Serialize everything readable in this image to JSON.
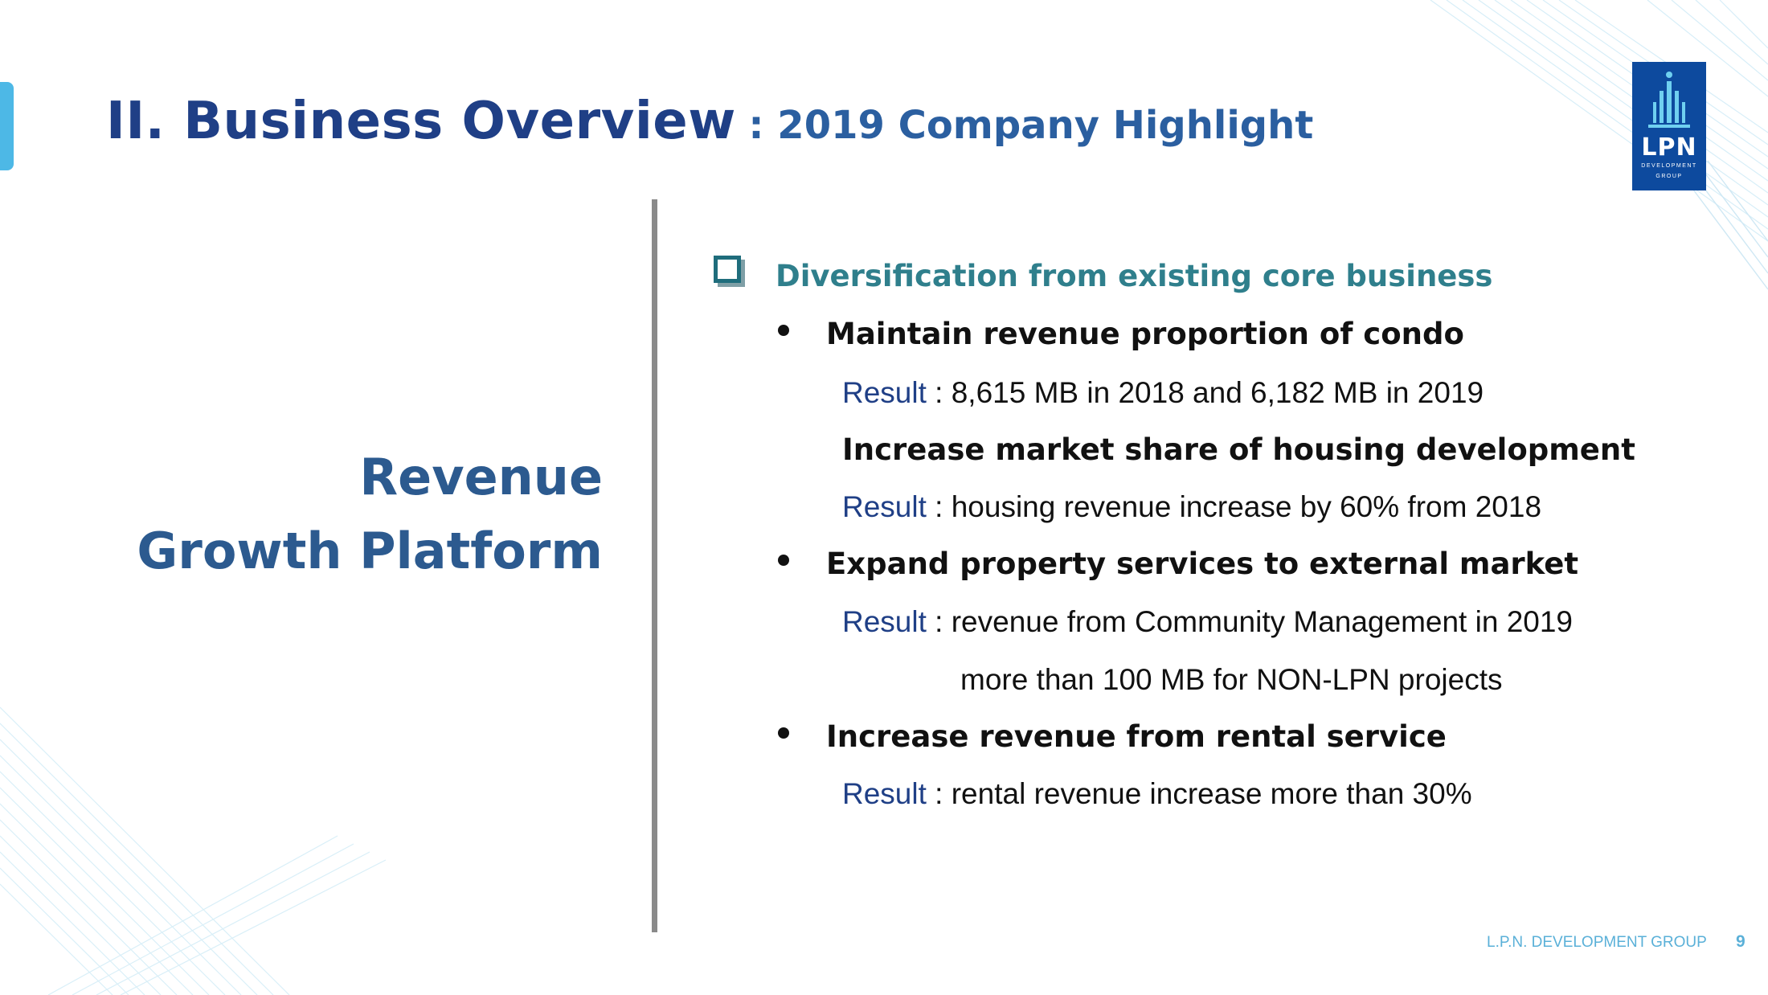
{
  "header": {
    "title_main": "II. Business Overview",
    "title_sub": ": 2019 Company Highlight"
  },
  "logo": {
    "wordmark": "LPN",
    "tagline_1": "DEVELOPMENT",
    "tagline_2": "GROUP"
  },
  "left_panel": {
    "line_1": "Revenue",
    "line_2": "Growth Platform"
  },
  "content": {
    "section_heading": "Diversification from existing core business",
    "items": [
      {
        "heading": "Maintain revenue proportion of condo",
        "result_label": "Result",
        "result_text": " : 8,615 MB in 2018 and 6,182 MB in 2019",
        "sub_heading": "Increase market share of housing development",
        "sub_result_label": "Result",
        "sub_result_text": " : housing revenue increase by 60% from 2018"
      },
      {
        "heading": "Expand property services to external market",
        "result_label": "Result",
        "result_text": " : revenue from Community Management in 2019",
        "result_continuation": "more than 100 MB for NON-LPN projects"
      },
      {
        "heading": "Increase revenue from rental service",
        "result_label": "Result",
        "result_text": " : rental revenue increase more than 30%"
      }
    ]
  },
  "footer": {
    "company": "L.P.N. DEVELOPMENT GROUP",
    "page_number": "9"
  },
  "colors": {
    "title_navy": "#1f3f86",
    "heading_teal": "#2f7f8c",
    "left_heading_blue": "#2c5a8f",
    "logo_blue": "#0d4a9e",
    "accent_cyan": "#4db8e6"
  },
  "icons": {
    "checkbox": "checkbox-icon",
    "bullet": "bullet-icon",
    "logo_building": "building-icon"
  }
}
